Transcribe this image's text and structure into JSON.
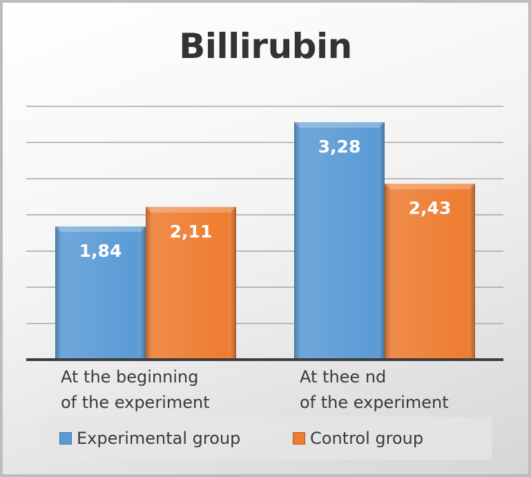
{
  "chart_data": {
    "type": "bar",
    "title": "Billirubin",
    "categories": [
      "At the beginning\nof the experiment",
      "At thee nd\nof the experiment"
    ],
    "series": [
      {
        "name": "Experimental group",
        "values": [
          1.84,
          3.28
        ],
        "labels": [
          "1,84",
          "3,28"
        ],
        "color": "#5b9bd5"
      },
      {
        "name": "Control group",
        "values": [
          2.11,
          2.43
        ],
        "labels": [
          "2,11",
          "2,43"
        ],
        "color": "#ed7d31"
      }
    ],
    "ylim": [
      0,
      3.5
    ],
    "grid": true,
    "legend_position": "bottom"
  }
}
